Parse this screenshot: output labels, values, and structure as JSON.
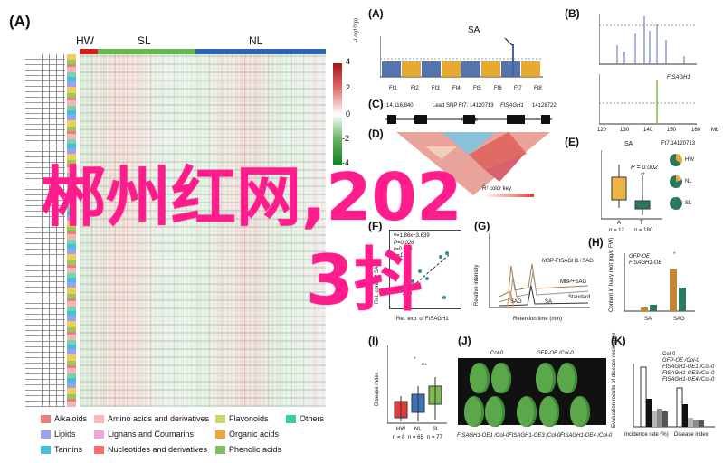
{
  "panelA": {
    "label": "(A)",
    "groups": [
      "HW",
      "SL",
      "NL"
    ],
    "scale": [
      "4",
      "2",
      "0",
      "-2",
      "-4"
    ],
    "legend": [
      {
        "name": "Alkaloids",
        "color": "#ef7d7d"
      },
      {
        "name": "Amino acids and derivatives",
        "color": "#f7b8b8"
      },
      {
        "name": "Flavonoids",
        "color": "#c6d86c"
      },
      {
        "name": "Others",
        "color": "#33d29b"
      },
      {
        "name": "Lipids",
        "color": "#9ea0f0"
      },
      {
        "name": "Lignans and Coumarins",
        "color": "#f0a6d8"
      },
      {
        "name": "Organic acids",
        "color": "#f0a53a"
      },
      {
        "name": "Tannins",
        "color": "#3ec1da"
      },
      {
        "name": "Nucleotides and derivatives",
        "color": "#ff6a6a"
      },
      {
        "name": "Phenolic acids",
        "color": "#7dc25f"
      }
    ]
  },
  "panelB": {
    "label": "(B)",
    "gene": "FtSAGH1",
    "ylabel1": "-log10(p)\nXP-CLR (NL VS HW)",
    "ylabel2": "-log10(p)\nXP-CLR (SL VS HW)",
    "ticks": [
      "120",
      "130",
      "140",
      "150",
      "160"
    ],
    "xunit": "Mb"
  },
  "panelAA": {
    "label": "(A)",
    "title": "SA",
    "ylabel": "-Log10(p)",
    "chromosomes": [
      "Ft1",
      "Ft2",
      "Ft3",
      "Ft4",
      "Ft5",
      "Ft6",
      "Ft7",
      "Ft8"
    ]
  },
  "panelC": {
    "label": "(C)",
    "left": "14,116,840",
    "lead": "Lead SNP Ft7: 14120713",
    "gene": "FtSAGH1",
    "right": "14128722",
    "scale": "0.10kb"
  },
  "panelD": {
    "label": "(D)",
    "legend_title": "R² color key",
    "legend_ticks": [
      "0",
      "0.2",
      "0.4",
      "0.6",
      "0.8",
      "1"
    ]
  },
  "panelE": {
    "label": "(E)",
    "title": "SA",
    "ylabel": "Rel. cont. (log2)",
    "pvalue": "P = 0.002",
    "sig": "**",
    "groups": [
      "A",
      "T"
    ],
    "n": [
      "n = 12",
      "n = 180"
    ],
    "snp": "Ft7:14120713",
    "pie": [
      "HW",
      "NL",
      "SL"
    ]
  },
  "panelF": {
    "label": "(F)",
    "stats": [
      "y=1.86x+3.639",
      "P=0.026",
      "r=0.536",
      "n=17"
    ],
    "ylabel": "Rel. cont. of SA",
    "xlabel": "Rel. exp. of FtSAGH1"
  },
  "panelG": {
    "label": "(G)",
    "ylabel": "Relative intensity",
    "xlabel": "Retention time (min)",
    "ticks": [
      "2",
      "4",
      "6",
      "8"
    ],
    "lines": [
      "MBP-FtSAGH1+SAG",
      "MBP+SAG",
      "Standard"
    ],
    "peaks": [
      "SAG",
      "SA",
      "SAG",
      "SA"
    ]
  },
  "panelH": {
    "label": "(H)",
    "legend": [
      "GFP-OE",
      "FtSAGH1-OE"
    ],
    "ylabel": "Content in hairy root (ng/g FW)",
    "groups": [
      "SA",
      "SAG"
    ],
    "sig": "*"
  },
  "panelI": {
    "label": "(I)",
    "ylabel": "Disease index",
    "groups": [
      "HW",
      "NL",
      "SL"
    ],
    "n": [
      "n = 8",
      "n = 65",
      "n = 77"
    ],
    "sig": [
      "*",
      "***"
    ]
  },
  "panelJ": {
    "label": "(J)",
    "top": [
      "Col-0",
      "GFP-OE /Col-0"
    ],
    "bottom": [
      "FtSAGH1-OE1 /Col-0",
      "FtSAGH1-OE3 /Col-0",
      "FtSAGH1-OE4 /Col-0"
    ]
  },
  "panelK": {
    "label": "(K)",
    "legend": [
      "Col-0",
      "GFP-OE /Col-0",
      "FtSAGH1-OE1 /Col-0",
      "FtSAGH1-OE3 /Col-0",
      "FtSAGH1-OE4 /Col-0"
    ],
    "ylabel": "Evaluation results of disease resistance",
    "xlabels": [
      "Incidence rate (%)",
      "Disease index"
    ]
  },
  "overlay": {
    "line1": "郴州红网,202",
    "line2": "3抖"
  }
}
